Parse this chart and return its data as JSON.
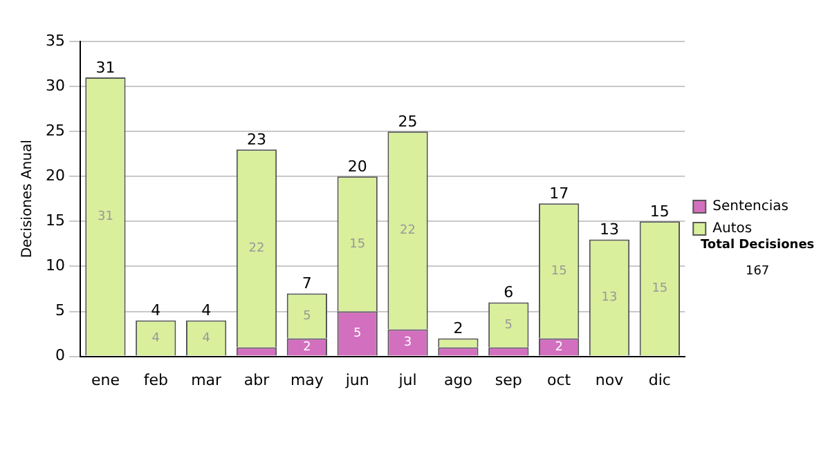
{
  "chart_data": {
    "type": "bar",
    "stacked": true,
    "ylabel": "Decisiones Anual",
    "categories": [
      "ene",
      "feb",
      "mar",
      "abr",
      "may",
      "jun",
      "jul",
      "ago",
      "sep",
      "oct",
      "nov",
      "dic"
    ],
    "series": [
      {
        "name": "Sentencias",
        "color": "#d36fbf",
        "values": [
          0,
          0,
          0,
          1,
          2,
          5,
          3,
          1,
          1,
          2,
          0,
          0
        ],
        "value_labels": [
          null,
          null,
          null,
          null,
          "2",
          "5",
          "3",
          null,
          null,
          "2",
          null,
          null
        ]
      },
      {
        "name": "Autos",
        "color": "#d9ef9c",
        "values": [
          31,
          4,
          4,
          22,
          5,
          15,
          22,
          1,
          5,
          15,
          13,
          15
        ],
        "value_labels": [
          "31",
          "4",
          "4",
          "22",
          "5",
          "15",
          "22",
          null,
          "5",
          "15",
          "13",
          "15"
        ]
      }
    ],
    "totals": [
      "31",
      "4",
      "4",
      "23",
      "7",
      "20",
      "25",
      "2",
      "6",
      "17",
      "13",
      "15"
    ],
    "ylim": [
      0,
      35
    ],
    "yticks": [
      0,
      5,
      10,
      15,
      20,
      25,
      30,
      35
    ],
    "grid": "y",
    "legend": "right",
    "annotations": [
      "Total Decisiones",
      "167"
    ]
  }
}
